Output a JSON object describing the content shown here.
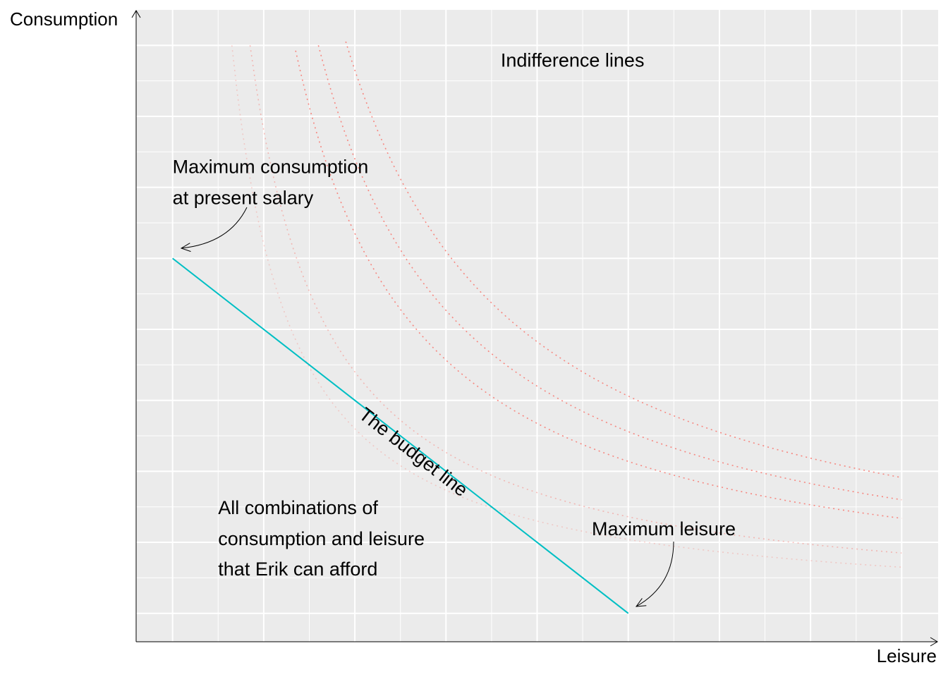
{
  "chart_data": {
    "type": "line",
    "title": "",
    "xlabel": "Leisure",
    "ylabel": "Consumption",
    "xlim": [
      -0.4,
      8.4
    ],
    "ylim": [
      -0.4,
      8.5
    ],
    "grid": true,
    "tick_labels_shown": false,
    "colors": {
      "panel": "#EBEBEB",
      "grid": "#FFFFFF",
      "budget_line": "#00BFC4",
      "indifference": "#F8766D"
    },
    "budget_line": {
      "x": [
        0,
        5
      ],
      "y": [
        5,
        0
      ]
    },
    "indifference_lines": [
      {
        "k": 5.2,
        "opacity": 0.3,
        "x_start": 0.65,
        "x_end": 8.0
      },
      {
        "k": 6.8,
        "opacity": 0.45,
        "x_start": 0.85,
        "x_end": 8.0
      },
      {
        "k": 10.7,
        "opacity": 0.85,
        "x_start": 1.35,
        "x_end": 8.0
      },
      {
        "k": 12.8,
        "opacity": 0.85,
        "x_start": 1.6,
        "x_end": 8.0
      },
      {
        "k": 15.3,
        "opacity": 0.85,
        "x_start": 1.9,
        "x_end": 8.0
      }
    ],
    "annotations": {
      "indifference": {
        "text": "Indifference lines",
        "x": 3.6,
        "y": 7.7
      },
      "max_consumption": {
        "lines": [
          "Maximum consumption",
          "at present salary"
        ],
        "x": 0.0,
        "y": 6.2
      },
      "budget_label": {
        "text": "The budget line",
        "x": 2.6,
        "y": 2.2
      },
      "max_leisure": {
        "text": "Maximum leisure",
        "x": 4.6,
        "y": 1.1
      },
      "affordable": {
        "lines": [
          "All combinations of",
          "consumption and leisure",
          "that Erik can afford"
        ],
        "x": 0.5,
        "y": 1.4
      }
    }
  }
}
